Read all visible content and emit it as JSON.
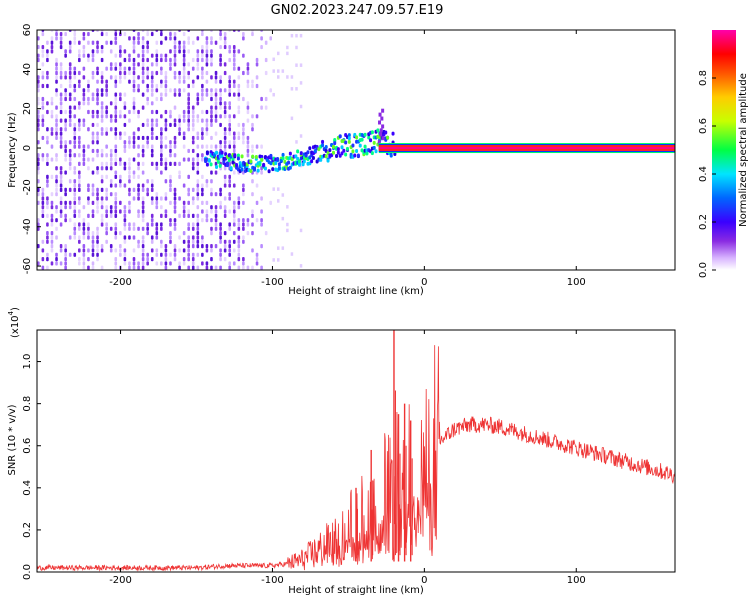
{
  "figure_title": "GN02.2023.247.09.57.E19",
  "chart_data": [
    {
      "type": "heatmap",
      "xlabel": "Height of straight line (km)",
      "ylabel": "Frequency (Hz)",
      "xlim": [
        -255,
        165
      ],
      "ylim": [
        -62,
        60
      ],
      "xticks": [
        -200,
        -100,
        0,
        100
      ],
      "yticks": [
        -60,
        -40,
        -20,
        0,
        20,
        40,
        60
      ],
      "xtick_labels": [
        "-200",
        "-100",
        "0",
        "100"
      ],
      "ytick_labels": [
        "-60",
        "-40",
        "-20",
        "0",
        "20",
        "40",
        "60"
      ],
      "colorbar": {
        "label": "Normalized spectral amplitude",
        "range": [
          0,
          1
        ],
        "ticks": [
          0.0,
          0.2,
          0.4,
          0.6,
          0.8
        ],
        "tick_labels": [
          "0.0",
          "0.2",
          "0.4",
          "0.6",
          "0.8"
        ],
        "colormap": [
          "#ffffff",
          "#d8b4ff",
          "#8a2be2",
          "#3a00ff",
          "#0066ff",
          "#00e5ff",
          "#00ff44",
          "#c8ff00",
          "#ffcc00",
          "#ff5500",
          "#ff0000",
          "#ff00aa"
        ]
      },
      "features": [
        {
          "name": "broadband noise",
          "x_range": [
            -255,
            -100
          ],
          "y_range": [
            -62,
            60
          ],
          "level": 0.15
        },
        {
          "name": "drifting feature",
          "x_points": [
            -145,
            -120,
            -100,
            -80,
            -60,
            -40,
            -30,
            -20
          ],
          "y_points": [
            -5,
            -8,
            -8,
            -5,
            0,
            2,
            4,
            1
          ],
          "level": 0.35
        },
        {
          "name": "constant tone",
          "x_range": [
            -30,
            165
          ],
          "y": 0,
          "level": 0.95
        }
      ]
    },
    {
      "type": "line",
      "xlabel": "Height of straight line (km)",
      "ylabel": "SNR (10 * v/v)",
      "y_scale_label": "(x10",
      "y_scale_exponent": "4",
      "y_scale_suffix": ")",
      "xlim": [
        -255,
        165
      ],
      "ylim": [
        0,
        1.15
      ],
      "xticks": [
        -200,
        -100,
        0,
        100
      ],
      "yticks": [
        0.0,
        0.2,
        0.4,
        0.6,
        0.8,
        1.0
      ],
      "xtick_labels": [
        "-200",
        "-100",
        "0",
        "100"
      ],
      "ytick_labels": [
        "0.0",
        "0.2",
        "0.4",
        "0.6",
        "0.8",
        "1.0"
      ],
      "color": "#ee3333",
      "series": [
        {
          "x": [
            -255,
            -230,
            -200,
            -170,
            -150,
            -130,
            -110,
            -100,
            -90,
            -80,
            -70,
            -60,
            -50,
            -40,
            -30,
            -25,
            -20,
            -15,
            -10,
            -5,
            0,
            10,
            20,
            30,
            40,
            50,
            60,
            70,
            80,
            90,
            100,
            110,
            120,
            130,
            140,
            150,
            160,
            165
          ],
          "values": [
            0.02,
            0.02,
            0.02,
            0.02,
            0.02,
            0.03,
            0.03,
            0.03,
            0.04,
            0.06,
            0.1,
            0.14,
            0.2,
            0.26,
            0.32,
            0.36,
            0.42,
            0.4,
            0.44,
            0.48,
            0.54,
            0.62,
            0.68,
            0.7,
            0.7,
            0.69,
            0.67,
            0.65,
            0.63,
            0.61,
            0.59,
            0.57,
            0.55,
            0.53,
            0.51,
            0.49,
            0.47,
            0.46
          ]
        }
      ],
      "spikes": [
        {
          "x": -20,
          "value": 1.15
        },
        {
          "x": -17,
          "value": 0.75
        },
        {
          "x": -13,
          "value": 0.8
        },
        {
          "x": -9,
          "value": 0.72
        },
        {
          "x": -35,
          "value": 0.58
        },
        {
          "x": -45,
          "value": 0.4
        }
      ]
    }
  ]
}
